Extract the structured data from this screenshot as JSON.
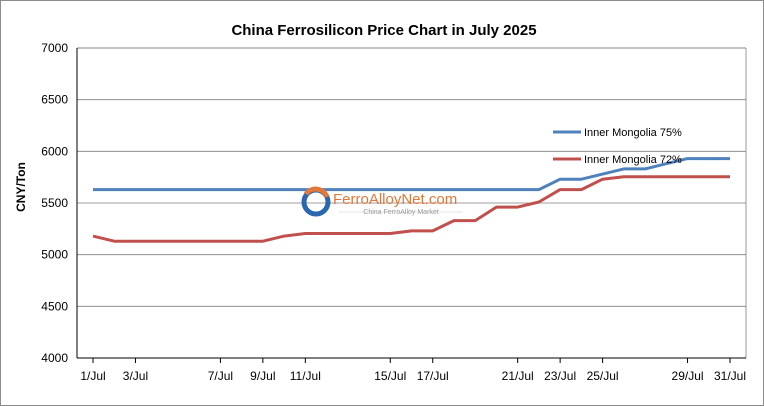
{
  "chart_data": {
    "type": "line",
    "title": "China Ferrosilicon Price Chart in July 2025",
    "xlabel": "",
    "ylabel": "CNY/Ton",
    "ylim": [
      4000,
      7000
    ],
    "yticks": [
      4000,
      4500,
      5000,
      5500,
      6000,
      6500,
      7000
    ],
    "grid": true,
    "legend_position": "right",
    "x_points": [
      "1/Jul",
      "2/Jul",
      "3/Jul",
      "4/Jul",
      "5/Jul",
      "6/Jul",
      "7/Jul",
      "8/Jul",
      "9/Jul",
      "10/Jul",
      "11/Jul",
      "12/Jul",
      "13/Jul",
      "14/Jul",
      "15/Jul",
      "16/Jul",
      "17/Jul",
      "18/Jul",
      "19/Jul",
      "20/Jul",
      "21/Jul",
      "22/Jul",
      "23/Jul",
      "24/Jul",
      "25/Jul",
      "26/Jul",
      "27/Jul",
      "28/Jul",
      "29/Jul",
      "30/Jul",
      "31/Jul"
    ],
    "x_tick_labels": [
      "1/Jul",
      "3/Jul",
      "7/Jul",
      "9/Jul",
      "11/Jul",
      "15/Jul",
      "17/Jul",
      "21/Jul",
      "23/Jul",
      "25/Jul",
      "29/Jul",
      "31/Jul"
    ],
    "x_tick_indices": [
      0,
      2,
      6,
      8,
      10,
      14,
      16,
      20,
      22,
      24,
      28,
      30
    ],
    "series": [
      {
        "name": "Inner Mongolia 75%",
        "color": "#4f81bd",
        "values": [
          5630,
          5630,
          5630,
          5630,
          5630,
          5630,
          5630,
          5630,
          5630,
          5630,
          5630,
          5630,
          5630,
          5630,
          5630,
          5630,
          5630,
          5630,
          5630,
          5630,
          5630,
          5630,
          5730,
          5730,
          5780,
          5830,
          5830,
          5880,
          5930,
          5930,
          5930
        ]
      },
      {
        "name": "Inner Mongolia 72%",
        "color": "#c0504d",
        "values": [
          5180,
          5130,
          5130,
          5130,
          5130,
          5130,
          5130,
          5130,
          5130,
          5180,
          5205,
          5205,
          5205,
          5205,
          5205,
          5230,
          5230,
          5330,
          5330,
          5460,
          5460,
          5510,
          5630,
          5630,
          5730,
          5755,
          5755,
          5755,
          5755,
          5755,
          5755
        ]
      }
    ]
  },
  "watermark": {
    "brand": "FerroAlloyNet.com",
    "tagline": "China FerroAlloy Market"
  }
}
